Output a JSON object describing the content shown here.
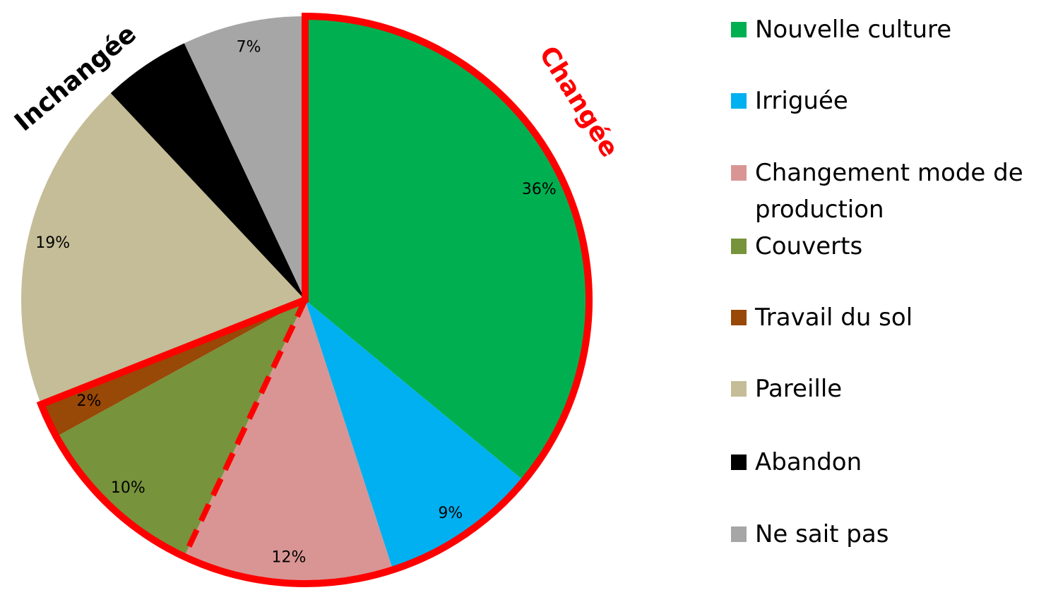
{
  "chart_data": {
    "type": "pie",
    "categories": [
      "Nouvelle culture",
      "Irriguée",
      "Changement mode de production",
      "Couverts",
      "Travail du sol",
      "Pareille",
      "Abandon",
      "Ne sait pas"
    ],
    "values": [
      36,
      9,
      12,
      10,
      2,
      19,
      5,
      7
    ],
    "value_labels": [
      "36%",
      "9%",
      "12%",
      "10%",
      "2%",
      "19%",
      null,
      "7%"
    ],
    "colors": [
      "#00b050",
      "#00b0f0",
      "#d99594",
      "#77933c",
      "#984807",
      "#c4bd97",
      "#000000",
      "#a6a6a6"
    ],
    "annotations": [
      "Changée",
      "Inchangée"
    ],
    "legend": "right"
  }
}
